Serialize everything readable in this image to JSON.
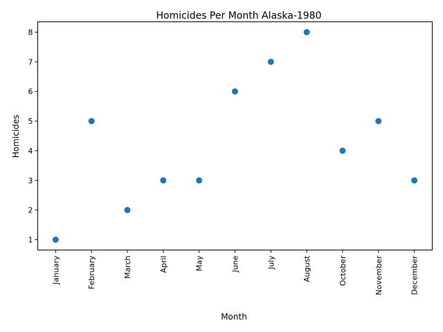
{
  "chart_data": {
    "type": "scatter",
    "title": "Homicides Per Month Alaska-1980",
    "xlabel": "Month",
    "ylabel": "Homicides",
    "categories": [
      "January",
      "February",
      "March",
      "April",
      "May",
      "June",
      "July",
      "August",
      "October",
      "November",
      "December"
    ],
    "values": [
      1,
      5,
      2,
      3,
      3,
      6,
      7,
      8,
      4,
      5,
      3
    ],
    "yticks": [
      1,
      2,
      3,
      4,
      5,
      6,
      7,
      8
    ],
    "ylim": [
      0.65,
      8.35
    ],
    "grid": false,
    "marker_color": "#1f77b4"
  }
}
